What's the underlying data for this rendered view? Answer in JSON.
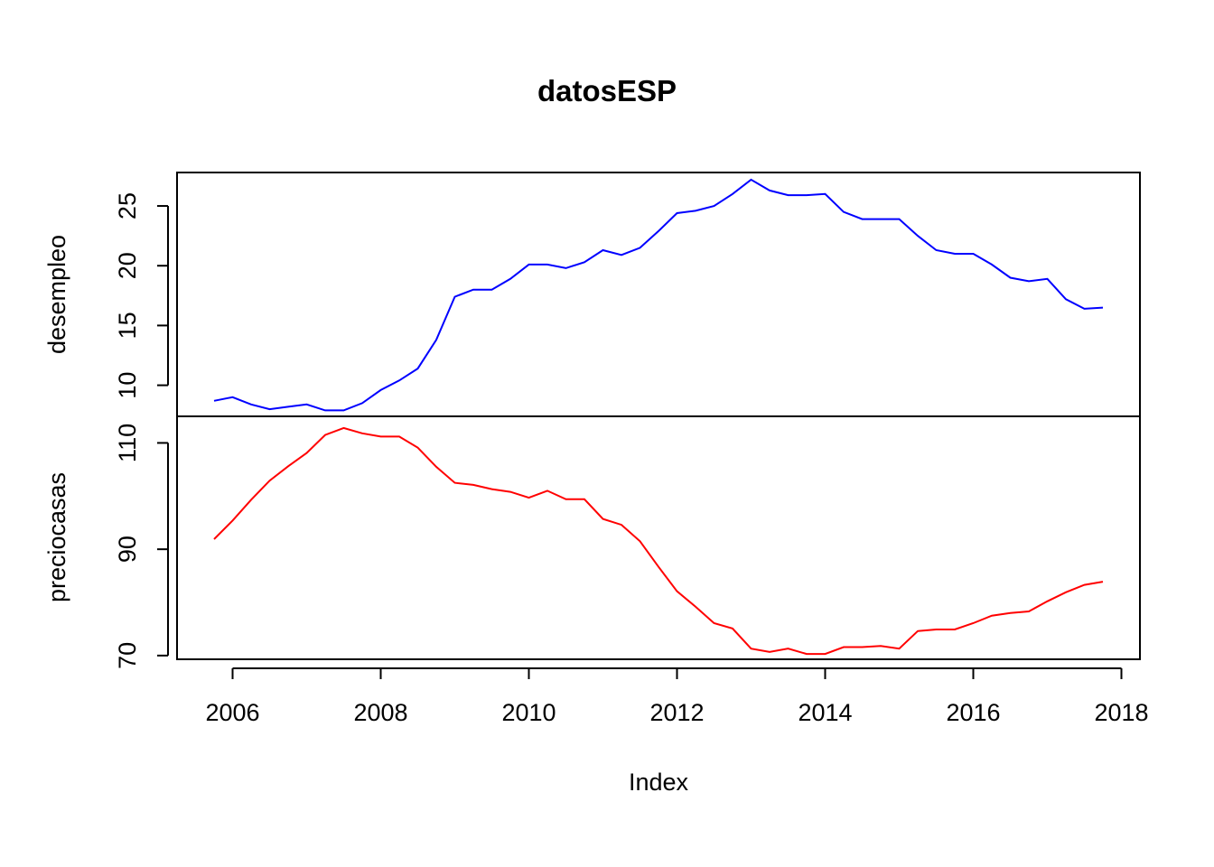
{
  "chart_data": {
    "type": "line",
    "title": "datosESP",
    "xlabel": "Index",
    "xlim": [
      2005.25,
      2018.25
    ],
    "x_ticks": [
      "2006",
      "2008",
      "2010",
      "2012",
      "2014",
      "2016",
      "2018"
    ],
    "x": [
      2005.75,
      2006.0,
      2006.25,
      2006.5,
      2006.75,
      2007.0,
      2007.25,
      2007.5,
      2007.75,
      2008.0,
      2008.25,
      2008.5,
      2008.75,
      2009.0,
      2009.25,
      2009.5,
      2009.75,
      2010.0,
      2010.25,
      2010.5,
      2010.75,
      2011.0,
      2011.25,
      2011.5,
      2011.75,
      2012.0,
      2012.25,
      2012.5,
      2012.75,
      2013.0,
      2013.25,
      2013.5,
      2013.75,
      2014.0,
      2014.25,
      2014.5,
      2014.75,
      2015.0,
      2015.25,
      2015.5,
      2015.75,
      2016.0,
      2016.25,
      2016.5,
      2016.75,
      2017.0,
      2017.25,
      2017.5,
      2017.75
    ],
    "panels": [
      {
        "name": "desempleo",
        "ylabel": "desempleo",
        "color": "#0000ff",
        "ylim": [
          7.4,
          27.8
        ],
        "y_ticks": [
          "10",
          "15",
          "20",
          "25"
        ],
        "values": [
          8.7,
          9.0,
          8.4,
          8.0,
          8.2,
          8.4,
          7.9,
          7.9,
          8.5,
          9.6,
          10.4,
          11.4,
          13.8,
          17.4,
          18.0,
          18.0,
          18.9,
          20.1,
          20.1,
          19.8,
          20.3,
          21.3,
          20.9,
          21.5,
          22.9,
          24.4,
          24.6,
          25.0,
          26.0,
          27.2,
          26.3,
          25.9,
          25.9,
          26.0,
          24.5,
          23.9,
          23.9,
          23.9,
          22.5,
          21.3,
          21.0,
          21.0,
          20.1,
          19.0,
          18.7,
          18.9,
          17.2,
          16.4,
          16.5
        ]
      },
      {
        "name": "preciocasas",
        "ylabel": "preciocasas",
        "color": "#ff0000",
        "ylim": [
          69.3,
          115.0
        ],
        "y_ticks": [
          "70",
          "90",
          "110"
        ],
        "values": [
          91.9,
          95.4,
          99.3,
          102.9,
          105.6,
          108.1,
          111.5,
          112.8,
          111.8,
          111.2,
          111.2,
          109.1,
          105.5,
          102.5,
          102.1,
          101.3,
          100.8,
          99.7,
          101.0,
          99.4,
          99.4,
          95.7,
          94.6,
          91.5,
          86.7,
          82.1,
          79.2,
          76.1,
          75.1,
          71.3,
          70.7,
          71.3,
          70.3,
          70.3,
          71.6,
          71.6,
          71.8,
          71.3,
          74.6,
          74.9,
          74.9,
          76.1,
          77.5,
          78.0,
          78.3,
          80.2,
          81.9,
          83.3,
          83.9
        ]
      }
    ]
  }
}
